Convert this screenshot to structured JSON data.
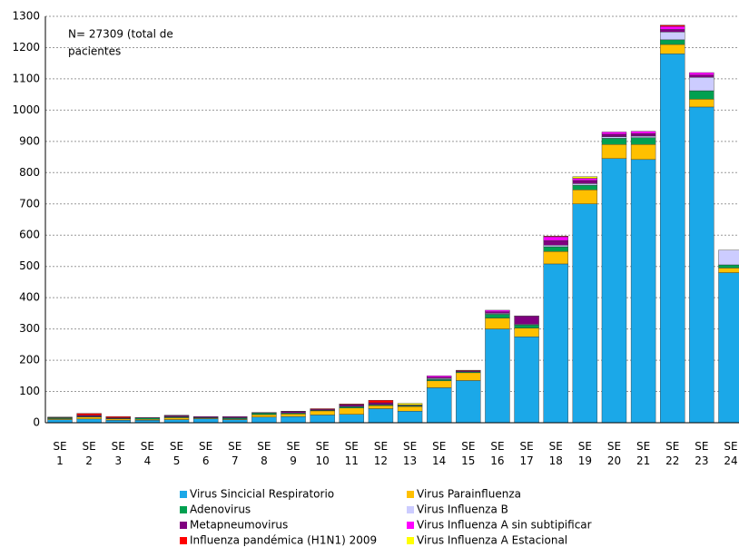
{
  "chart_data": {
    "type": "stacked_bar",
    "annotation": [
      "N=  27309 (total de",
      "pacientes"
    ],
    "categories": [
      "SE 1",
      "SE 2",
      "SE 3",
      "SE 4",
      "SE 5",
      "SE 6",
      "SE 7",
      "SE 8",
      "SE 9",
      "SE 10",
      "SE 11",
      "SE 12",
      "SE 13",
      "SE 14",
      "SE 15",
      "SE 16",
      "SE 17",
      "SE 18",
      "SE 19",
      "SE 20",
      "SE 21",
      "SE 22",
      "SE 23",
      "SE 24"
    ],
    "series": [
      {
        "name": "Virus Sincicial Respiratorio",
        "color": "#1ba8e8",
        "values": [
          10,
          12,
          8,
          8,
          10,
          13,
          10,
          18,
          20,
          25,
          27,
          45,
          37,
          112,
          135,
          300,
          275,
          508,
          700,
          845,
          842,
          1180,
          1010,
          480
        ]
      },
      {
        "name": "Virus Parainfluenza",
        "color": "#ffc000",
        "values": [
          3,
          6,
          4,
          3,
          6,
          2,
          2,
          8,
          8,
          13,
          20,
          10,
          15,
          22,
          25,
          35,
          28,
          40,
          45,
          45,
          48,
          30,
          25,
          15
        ]
      },
      {
        "name": "Adenovirus",
        "color": "#00a050",
        "values": [
          3,
          2,
          2,
          4,
          3,
          2,
          4,
          5,
          3,
          2,
          5,
          3,
          3,
          5,
          3,
          12,
          10,
          15,
          15,
          20,
          22,
          15,
          27,
          10
        ]
      },
      {
        "name": "Virus Influenza B",
        "color": "#ccccff",
        "values": [
          0,
          0,
          0,
          0,
          0,
          0,
          0,
          0,
          0,
          0,
          0,
          0,
          0,
          3,
          0,
          3,
          2,
          5,
          5,
          5,
          5,
          25,
          43,
          47
        ]
      },
      {
        "name": "Metapneumovirus",
        "color": "#800080",
        "values": [
          1,
          3,
          2,
          2,
          4,
          3,
          4,
          2,
          5,
          3,
          6,
          6,
          2,
          3,
          3,
          5,
          25,
          15,
          10,
          8,
          8,
          8,
          7,
          0
        ]
      },
      {
        "name": "Virus Influenza A sin subtipificar",
        "color": "#ff00ff",
        "values": [
          0,
          1,
          0,
          0,
          0,
          0,
          0,
          0,
          1,
          0,
          0,
          0,
          0,
          5,
          0,
          5,
          2,
          12,
          7,
          7,
          7,
          10,
          8,
          0
        ]
      },
      {
        "name": "Influenza pandémica (H1N1) 2009",
        "color": "#ff0000",
        "values": [
          1,
          6,
          4,
          0,
          1,
          0,
          0,
          0,
          0,
          2,
          2,
          8,
          0,
          0,
          2,
          0,
          0,
          2,
          0,
          0,
          0,
          4,
          0,
          0
        ]
      },
      {
        "name": "Virus Influenza A Estacional",
        "color": "#ffff00",
        "values": [
          0,
          0,
          0,
          0,
          0,
          0,
          0,
          0,
          0,
          0,
          0,
          0,
          5,
          0,
          0,
          0,
          0,
          0,
          5,
          0,
          0,
          0,
          0,
          0
        ]
      }
    ],
    "ylim": [
      0,
      1300
    ],
    "yticks": [
      0,
      100,
      200,
      300,
      400,
      500,
      600,
      700,
      800,
      900,
      1000,
      1100,
      1200,
      1300
    ],
    "grid": true
  }
}
